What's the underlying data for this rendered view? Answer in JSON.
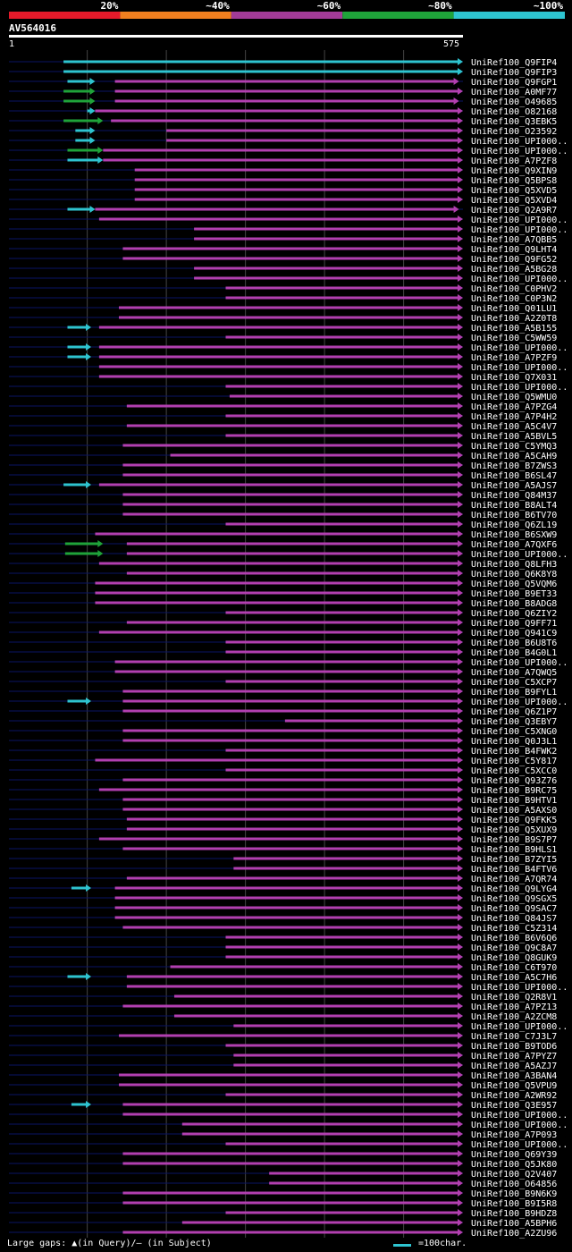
{
  "colors": {
    "bg": "#000000",
    "band_20": "#e41a2a",
    "band_40": "#f07f1f",
    "band_60": "#a23b97",
    "band_80": "#1fa33a",
    "band_100": "#2ec4d0",
    "query_line": "#0a1464",
    "hit_purple": "#b23fb0",
    "hit_green": "#1fa33a",
    "hit_cyan": "#2ec4d0",
    "grid": "#444444"
  },
  "chart_data": {
    "type": "alignment",
    "title": "AV564016",
    "query_range": [
      1,
      575
    ],
    "query_start_label": "1",
    "query_end_label": "575",
    "identity_legend": [
      "20%",
      "~40%",
      "~60%",
      "~80%",
      "~100%"
    ],
    "footer_text": "Large gaps: ▲(in Query)/– (in Subject)",
    "scale_text": "=100char.",
    "hits": [
      {
        "name": "UniRef100_Q9FIP4",
        "cyan": [
          70,
          575
        ],
        "purple": null
      },
      {
        "name": "UniRef100_Q9FIP3",
        "cyan": [
          70,
          575
        ],
        "purple": null
      },
      {
        "name": "UniRef100_Q9FGP1",
        "cyan": [
          75,
          110
        ],
        "purple": [
          135,
          570
        ]
      },
      {
        "name": "UniRef100_A0MF77",
        "green": [
          70,
          110
        ],
        "purple": [
          135,
          575
        ]
      },
      {
        "name": "UniRef100_O49685",
        "green": [
          70,
          110
        ],
        "purple": [
          135,
          570
        ]
      },
      {
        "name": "UniRef100_O82168",
        "cyan": [
          100,
          110
        ],
        "purple": [
          110,
          575
        ]
      },
      {
        "name": "UniRef100_Q3EBK5",
        "green": [
          70,
          120
        ],
        "purple": [
          130,
          575
        ]
      },
      {
        "name": "UniRef100_O23592",
        "cyan": [
          85,
          110
        ],
        "purple": [
          200,
          575
        ]
      },
      {
        "name": "UniRef100_UPI000..",
        "cyan": [
          85,
          110
        ],
        "purple": [
          200,
          575
        ]
      },
      {
        "name": "UniRef100_UPI000..",
        "green": [
          75,
          120
        ],
        "purple": [
          120,
          575
        ]
      },
      {
        "name": "UniRef100_A7PZF8",
        "cyan": [
          75,
          120
        ],
        "purple": [
          120,
          575
        ]
      },
      {
        "name": "UniRef100_Q9XIN9",
        "purple": [
          160,
          575
        ]
      },
      {
        "name": "UniRef100_Q5BPS8",
        "purple": [
          160,
          575
        ]
      },
      {
        "name": "UniRef100_Q5XVD5",
        "purple": [
          160,
          575
        ]
      },
      {
        "name": "UniRef100_Q5XVD4",
        "purple": [
          160,
          575
        ]
      },
      {
        "name": "UniRef100_Q2A9R7",
        "cyan": [
          75,
          110
        ],
        "purple": [
          110,
          570
        ]
      },
      {
        "name": "UniRef100_UPI000..",
        "purple": [
          115,
          575
        ]
      },
      {
        "name": "UniRef100_UPI000..",
        "purple": [
          235,
          575
        ]
      },
      {
        "name": "UniRef100_A7QBB5",
        "purple": [
          235,
          575
        ]
      },
      {
        "name": "UniRef100_Q9LHT4",
        "purple": [
          145,
          575
        ]
      },
      {
        "name": "UniRef100_Q9FG52",
        "purple": [
          145,
          575
        ]
      },
      {
        "name": "UniRef100_A5BG28",
        "purple": [
          235,
          575
        ]
      },
      {
        "name": "UniRef100_UPI000..",
        "purple": [
          235,
          575
        ]
      },
      {
        "name": "UniRef100_C0PHV2",
        "purple": [
          275,
          575
        ]
      },
      {
        "name": "UniRef100_C0P3N2",
        "purple": [
          275,
          575
        ]
      },
      {
        "name": "UniRef100_Q01LU1",
        "purple": [
          140,
          575
        ]
      },
      {
        "name": "UniRef100_A2Z0T8",
        "purple": [
          140,
          575
        ]
      },
      {
        "name": "UniRef100_A5B155",
        "cyan": [
          75,
          105
        ],
        "purple": [
          115,
          575
        ]
      },
      {
        "name": "UniRef100_C5WW59",
        "purple": [
          275,
          575
        ]
      },
      {
        "name": "UniRef100_UPI000..",
        "cyan": [
          75,
          105
        ],
        "purple": [
          115,
          575
        ]
      },
      {
        "name": "UniRef100_A7PZF9",
        "cyan": [
          75,
          105
        ],
        "purple": [
          115,
          575
        ]
      },
      {
        "name": "UniRef100_UPI000..",
        "purple": [
          115,
          575
        ]
      },
      {
        "name": "UniRef100_Q7X031",
        "purple": [
          115,
          575
        ]
      },
      {
        "name": "UniRef100_UPI000..",
        "purple": [
          275,
          575
        ]
      },
      {
        "name": "UniRef100_Q5WMU0",
        "purple": [
          280,
          575
        ]
      },
      {
        "name": "UniRef100_A7PZG4",
        "purple": [
          150,
          575
        ]
      },
      {
        "name": "UniRef100_A7P4H2",
        "purple": [
          275,
          575
        ]
      },
      {
        "name": "UniRef100_A5C4V7",
        "purple": [
          150,
          575
        ]
      },
      {
        "name": "UniRef100_A5BVL5",
        "purple": [
          275,
          575
        ]
      },
      {
        "name": "UniRef100_C5YMQ3",
        "purple": [
          145,
          575
        ]
      },
      {
        "name": "UniRef100_A5CAH9",
        "purple": [
          205,
          575
        ]
      },
      {
        "name": "UniRef100_B7ZWS3",
        "purple": [
          145,
          575
        ]
      },
      {
        "name": "UniRef100_B6SL47",
        "purple": [
          145,
          575
        ]
      },
      {
        "name": "UniRef100_A5AJS7",
        "cyan": [
          70,
          105
        ],
        "purple": [
          115,
          575
        ]
      },
      {
        "name": "UniRef100_Q84M37",
        "purple": [
          145,
          575
        ]
      },
      {
        "name": "UniRef100_B8ALT4",
        "purple": [
          145,
          575
        ]
      },
      {
        "name": "UniRef100_B6TV70",
        "purple": [
          145,
          575
        ]
      },
      {
        "name": "UniRef100_Q6ZL19",
        "purple": [
          275,
          575
        ]
      },
      {
        "name": "UniRef100_B6SXW9",
        "purple": [
          110,
          575
        ]
      },
      {
        "name": "UniRef100_A7QXF6",
        "green": [
          72,
          120
        ],
        "purple": [
          150,
          575
        ]
      },
      {
        "name": "UniRef100_UPI000..",
        "green": [
          72,
          120
        ],
        "purple": [
          150,
          575
        ]
      },
      {
        "name": "UniRef100_Q8LFH3",
        "purple": [
          115,
          575
        ]
      },
      {
        "name": "UniRef100_Q6K8Y8",
        "purple": [
          150,
          575
        ]
      },
      {
        "name": "UniRef100_Q5VQM6",
        "purple": [
          110,
          575
        ]
      },
      {
        "name": "UniRef100_B9ET33",
        "purple": [
          110,
          575
        ]
      },
      {
        "name": "UniRef100_B8ADG8",
        "purple": [
          110,
          575
        ]
      },
      {
        "name": "UniRef100_Q6ZIY2",
        "purple": [
          275,
          575
        ]
      },
      {
        "name": "UniRef100_Q9FF71",
        "purple": [
          150,
          575
        ]
      },
      {
        "name": "UniRef100_Q941C9",
        "purple": [
          115,
          575
        ]
      },
      {
        "name": "UniRef100_B6U8T6",
        "purple": [
          275,
          575
        ]
      },
      {
        "name": "UniRef100_B4G0L1",
        "purple": [
          275,
          575
        ]
      },
      {
        "name": "UniRef100_UPI000..",
        "purple": [
          135,
          575
        ]
      },
      {
        "name": "UniRef100_A7QWQ5",
        "purple": [
          135,
          575
        ]
      },
      {
        "name": "UniRef100_C5XCP7",
        "purple": [
          275,
          575
        ]
      },
      {
        "name": "UniRef100_B9FYL1",
        "purple": [
          145,
          575
        ]
      },
      {
        "name": "UniRef100_UPI000..",
        "cyan": [
          75,
          105
        ],
        "purple": [
          145,
          575
        ]
      },
      {
        "name": "UniRef100_Q6Z1P7",
        "purple": [
          145,
          575
        ]
      },
      {
        "name": "UniRef100_Q3EBY7",
        "purple": [
          350,
          575
        ]
      },
      {
        "name": "UniRef100_C5XNG0",
        "purple": [
          145,
          575
        ]
      },
      {
        "name": "UniRef100_Q0J3L1",
        "purple": [
          145,
          575
        ]
      },
      {
        "name": "UniRef100_B4FWK2",
        "purple": [
          275,
          575
        ]
      },
      {
        "name": "UniRef100_C5Y817",
        "purple": [
          110,
          575
        ]
      },
      {
        "name": "UniRef100_C5XCC0",
        "purple": [
          275,
          575
        ]
      },
      {
        "name": "UniRef100_Q93Z76",
        "purple": [
          145,
          575
        ]
      },
      {
        "name": "UniRef100_B9RC75",
        "purple": [
          115,
          575
        ]
      },
      {
        "name": "UniRef100_B9HTV1",
        "purple": [
          145,
          575
        ]
      },
      {
        "name": "UniRef100_A5AXS0",
        "purple": [
          145,
          575
        ]
      },
      {
        "name": "UniRef100_Q9FKK5",
        "purple": [
          150,
          575
        ]
      },
      {
        "name": "UniRef100_Q5XUX9",
        "purple": [
          150,
          575
        ]
      },
      {
        "name": "UniRef100_B9S7P7",
        "purple": [
          115,
          575
        ]
      },
      {
        "name": "UniRef100_B9HLS1",
        "purple": [
          145,
          575
        ]
      },
      {
        "name": "UniRef100_B7ZYI5",
        "purple": [
          285,
          575
        ]
      },
      {
        "name": "UniRef100_B4FTV6",
        "purple": [
          285,
          575
        ]
      },
      {
        "name": "UniRef100_A7QR74",
        "purple": [
          150,
          575
        ]
      },
      {
        "name": "UniRef100_Q9LYG4",
        "cyan": [
          80,
          105
        ],
        "purple": [
          135,
          575
        ]
      },
      {
        "name": "UniRef100_Q9SGX5",
        "purple": [
          135,
          575
        ]
      },
      {
        "name": "UniRef100_Q9SAC7",
        "purple": [
          135,
          575
        ]
      },
      {
        "name": "UniRef100_Q84JS7",
        "purple": [
          135,
          575
        ]
      },
      {
        "name": "UniRef100_C5Z314",
        "purple": [
          145,
          575
        ]
      },
      {
        "name": "UniRef100_B6V6Q6",
        "purple": [
          275,
          575
        ]
      },
      {
        "name": "UniRef100_Q9C8A7",
        "purple": [
          275,
          575
        ]
      },
      {
        "name": "UniRef100_Q8GUK9",
        "purple": [
          275,
          575
        ]
      },
      {
        "name": "UniRef100_C6T970",
        "purple": [
          205,
          575
        ]
      },
      {
        "name": "UniRef100_A5C7H6",
        "cyan": [
          75,
          105
        ],
        "purple": [
          150,
          575
        ]
      },
      {
        "name": "UniRef100_UPI000..",
        "purple": [
          150,
          575
        ]
      },
      {
        "name": "UniRef100_Q2R8V1",
        "purple": [
          210,
          575
        ]
      },
      {
        "name": "UniRef100_A7PZ13",
        "purple": [
          145,
          575
        ]
      },
      {
        "name": "UniRef100_A2ZCM8",
        "purple": [
          210,
          575
        ]
      },
      {
        "name": "UniRef100_UPI000..",
        "purple": [
          285,
          575
        ]
      },
      {
        "name": "UniRef100_C7J3L7",
        "purple": [
          140,
          575
        ]
      },
      {
        "name": "UniRef100_B9TOD6",
        "purple": [
          275,
          575
        ]
      },
      {
        "name": "UniRef100_A7PYZ7",
        "purple": [
          285,
          575
        ]
      },
      {
        "name": "UniRef100_A5AZJ7",
        "purple": [
          285,
          575
        ]
      },
      {
        "name": "UniRef100_A3BAN4",
        "purple": [
          140,
          575
        ]
      },
      {
        "name": "UniRef100_Q5VPU9",
        "purple": [
          140,
          575
        ]
      },
      {
        "name": "UniRef100_A2WR92",
        "purple": [
          275,
          575
        ]
      },
      {
        "name": "UniRef100_Q3E957",
        "cyan": [
          80,
          105
        ],
        "purple": [
          145,
          575
        ]
      },
      {
        "name": "UniRef100_UPI000..",
        "purple": [
          145,
          575
        ]
      },
      {
        "name": "UniRef100_UPI000..",
        "purple": [
          220,
          575
        ]
      },
      {
        "name": "UniRef100_A7P093",
        "purple": [
          220,
          575
        ]
      },
      {
        "name": "UniRef100_UPI000..",
        "purple": [
          275,
          575
        ]
      },
      {
        "name": "UniRef100_Q69Y39",
        "purple": [
          145,
          575
        ]
      },
      {
        "name": "UniRef100_Q5JK80",
        "purple": [
          145,
          575
        ]
      },
      {
        "name": "UniRef100_Q2V407",
        "purple": [
          330,
          575
        ]
      },
      {
        "name": "UniRef100_O64856",
        "purple": [
          330,
          575
        ]
      },
      {
        "name": "UniRef100_B9N6K9",
        "purple": [
          145,
          575
        ]
      },
      {
        "name": "UniRef100_B9I5R8",
        "purple": [
          145,
          575
        ]
      },
      {
        "name": "UniRef100_B9HDZ8",
        "purple": [
          275,
          575
        ]
      },
      {
        "name": "UniRef100_A5BPH6",
        "purple": [
          220,
          575
        ]
      },
      {
        "name": "UniRef100_A2ZU96",
        "purple": [
          145,
          575
        ]
      }
    ]
  }
}
